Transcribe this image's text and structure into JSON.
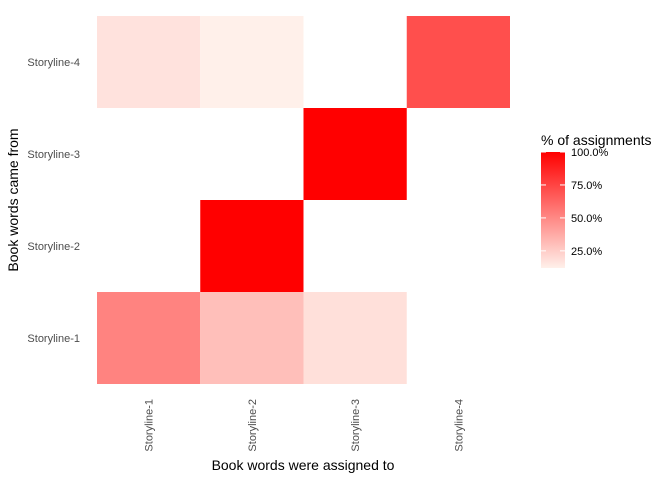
{
  "chart_data": {
    "type": "heatmap",
    "x_categories": [
      "Storyline-1",
      "Storyline-2",
      "Storyline-3",
      "Storyline-4"
    ],
    "y_categories": [
      "Storyline-1",
      "Storyline-2",
      "Storyline-3",
      "Storyline-4"
    ],
    "xlabel": "Book words were assigned to",
    "ylabel": "Book words came from",
    "cells": [
      {
        "x": "Storyline-1",
        "y": "Storyline-1",
        "value": 0.52
      },
      {
        "x": "Storyline-2",
        "y": "Storyline-1",
        "value": 0.3
      },
      {
        "x": "Storyline-3",
        "y": "Storyline-1",
        "value": 0.18
      },
      {
        "x": "Storyline-2",
        "y": "Storyline-2",
        "value": 1.0
      },
      {
        "x": "Storyline-3",
        "y": "Storyline-3",
        "value": 1.0
      },
      {
        "x": "Storyline-1",
        "y": "Storyline-4",
        "value": 0.17
      },
      {
        "x": "Storyline-2",
        "y": "Storyline-4",
        "value": 0.12
      },
      {
        "x": "Storyline-4",
        "y": "Storyline-4",
        "value": 0.71
      }
    ],
    "legend": {
      "title": "% of assignments",
      "breaks": [
        1.0,
        0.75,
        0.5,
        0.25
      ],
      "labels": [
        "100.0%",
        "75.0%",
        "50.0%",
        "25.0%"
      ],
      "range": [
        0.12,
        1.0
      ],
      "low_color": "#FFF0EA",
      "high_color": "#FF0000",
      "position": "right"
    },
    "grid": false
  }
}
